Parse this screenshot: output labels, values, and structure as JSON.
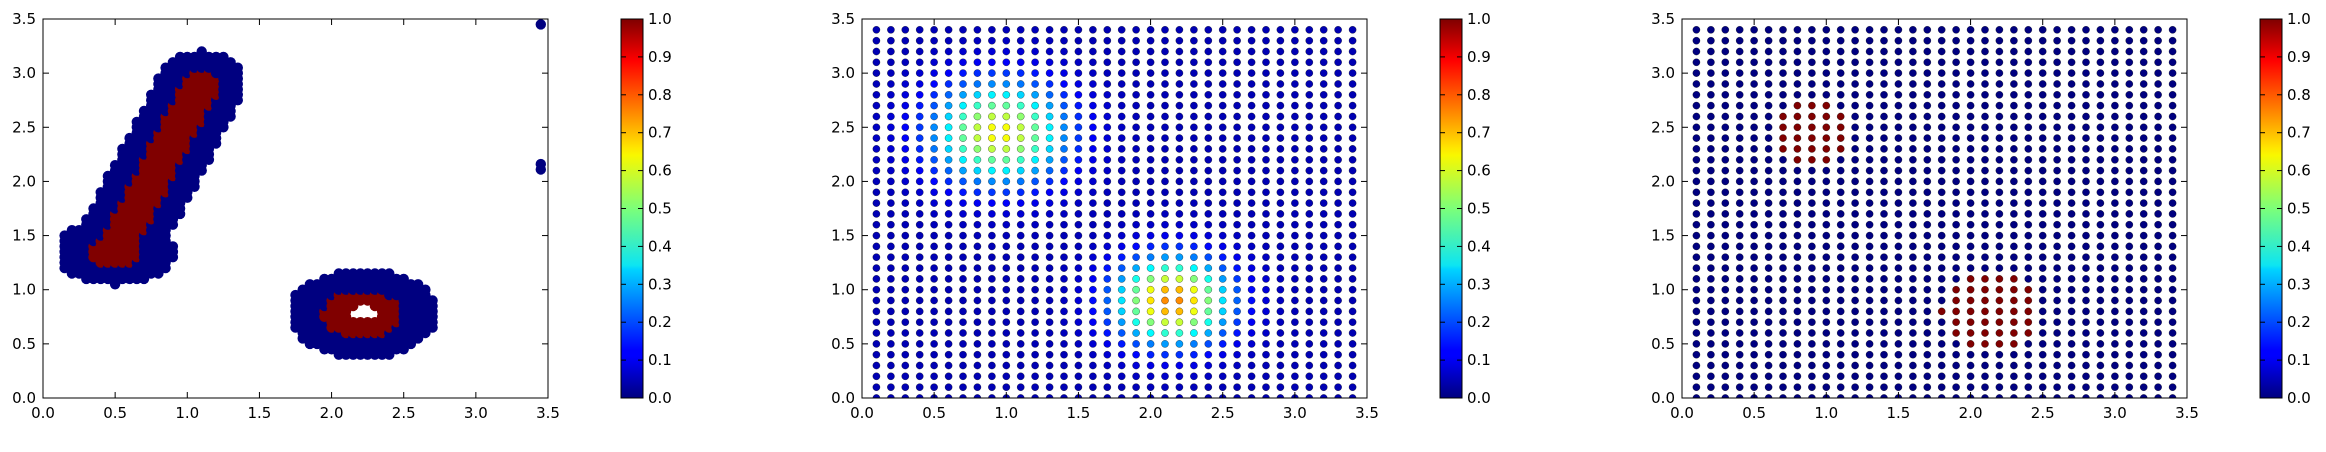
{
  "chart_data": [
    {
      "type": "scatter",
      "title": "",
      "xlabel": "",
      "ylabel": "",
      "xlim": [
        0.0,
        3.5
      ],
      "ylim": [
        0.0,
        3.5
      ],
      "xticks": [
        "0.0",
        "0.5",
        "1.0",
        "1.5",
        "2.0",
        "2.5",
        "3.0",
        "3.5"
      ],
      "yticks": [
        "0.0",
        "0.5",
        "1.0",
        "1.5",
        "2.0",
        "2.5",
        "3.0",
        "3.5"
      ],
      "colormap": "jet",
      "clim": [
        0.0,
        1.0
      ],
      "colorbar_ticks": [
        "0.0",
        "0.1",
        "0.2",
        "0.3",
        "0.4",
        "0.5",
        "0.6",
        "0.7",
        "0.8",
        "0.9",
        "1.0"
      ],
      "grid": false,
      "description": "Two clusters of points: an elongated diagonal band and a ring; class-1 (red) cores surrounded by class-0 (blue) borders; three isolated blue points near x=3.45",
      "regions": [
        {
          "shape": "band",
          "from": [
            0.5,
            1.35
          ],
          "to": [
            1.1,
            2.9
          ],
          "core_value": 1.0,
          "border_value": 0.0
        },
        {
          "shape": "ring",
          "center": [
            2.22,
            0.78
          ],
          "inner_radius": 0.1,
          "core_value": 1.0,
          "border_value": 0.0
        }
      ],
      "isolated_points": [
        {
          "x": 3.45,
          "y": 3.45,
          "value": 0.0
        },
        {
          "x": 3.45,
          "y": 2.16,
          "value": 0.0
        },
        {
          "x": 3.45,
          "y": 2.11,
          "value": 0.0
        }
      ]
    },
    {
      "type": "scatter",
      "title": "",
      "xlabel": "",
      "ylabel": "",
      "xlim": [
        0.0,
        3.5
      ],
      "ylim": [
        0.0,
        3.5
      ],
      "xticks": [
        "0.0",
        "0.5",
        "1.0",
        "1.5",
        "2.0",
        "2.5",
        "3.0",
        "3.5"
      ],
      "yticks": [
        "0.0",
        "0.5",
        "1.0",
        "1.5",
        "2.0",
        "2.5",
        "3.0",
        "3.5"
      ],
      "colormap": "jet",
      "clim": [
        0.0,
        1.0
      ],
      "colorbar_ticks": [
        "0.0",
        "0.1",
        "0.2",
        "0.3",
        "0.4",
        "0.5",
        "0.6",
        "0.7",
        "0.8",
        "0.9",
        "1.0"
      ],
      "grid": false,
      "grid_points": {
        "x_start": 0.1,
        "x_end": 3.4,
        "y_start": 0.0,
        "y_end": 3.4,
        "step": 0.1
      },
      "field_peaks": [
        {
          "x": 0.95,
          "y": 2.45,
          "value": 0.58,
          "spread": 0.45
        },
        {
          "x": 2.15,
          "y": 0.9,
          "value": 0.7,
          "spread": 0.38
        }
      ]
    },
    {
      "type": "scatter",
      "title": "",
      "xlabel": "",
      "ylabel": "",
      "xlim": [
        0.0,
        3.5
      ],
      "ylim": [
        0.0,
        3.5
      ],
      "xticks": [
        "0.0",
        "0.5",
        "1.0",
        "1.5",
        "2.0",
        "2.5",
        "3.0",
        "3.5"
      ],
      "yticks": [
        "0.0",
        "0.5",
        "1.0",
        "1.5",
        "2.0",
        "2.5",
        "3.0",
        "3.5"
      ],
      "colormap": "jet",
      "clim": [
        0.0,
        1.0
      ],
      "colorbar_ticks": [
        "0.0",
        "0.1",
        "0.2",
        "0.3",
        "0.4",
        "0.5",
        "0.6",
        "0.7",
        "0.8",
        "0.9",
        "1.0"
      ],
      "grid": false,
      "grid_points": {
        "x_start": 0.1,
        "x_end": 3.4,
        "y_start": 0.0,
        "y_end": 3.4,
        "step": 0.1
      },
      "red_clusters": [
        {
          "x": 0.9,
          "y": 2.45,
          "radius": 0.3,
          "value": 1.0
        },
        {
          "x": 2.15,
          "y": 0.8,
          "radius": 0.35,
          "value": 1.0
        }
      ]
    }
  ]
}
